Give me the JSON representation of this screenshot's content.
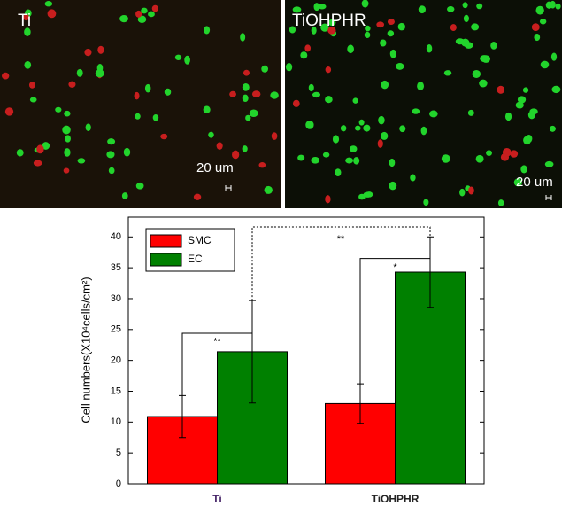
{
  "images": [
    {
      "label": "Ti",
      "scale_bar": "20 um"
    },
    {
      "label": "TiOHPHR",
      "scale_bar": "20 um"
    }
  ],
  "chart_data": {
    "type": "bar",
    "y_label": "Cell numbers(X10⁴cells/cm²)",
    "categories": [
      "Ti",
      "TiOHPHR"
    ],
    "series": [
      {
        "name": "SMC",
        "color": "#ff0000",
        "values": [
          10.9,
          13.0
        ],
        "errors": [
          3.4,
          3.2
        ]
      },
      {
        "name": "EC",
        "color": "#008000",
        "values": [
          21.4,
          34.3
        ],
        "errors": [
          8.3,
          5.7
        ]
      }
    ],
    "ylim": [
      0,
      43.2
    ],
    "yticks": [
      0,
      5,
      10,
      15,
      20,
      25,
      30,
      35,
      40
    ],
    "annotations": [
      "**",
      "*",
      "**"
    ],
    "legend": "upper left"
  }
}
